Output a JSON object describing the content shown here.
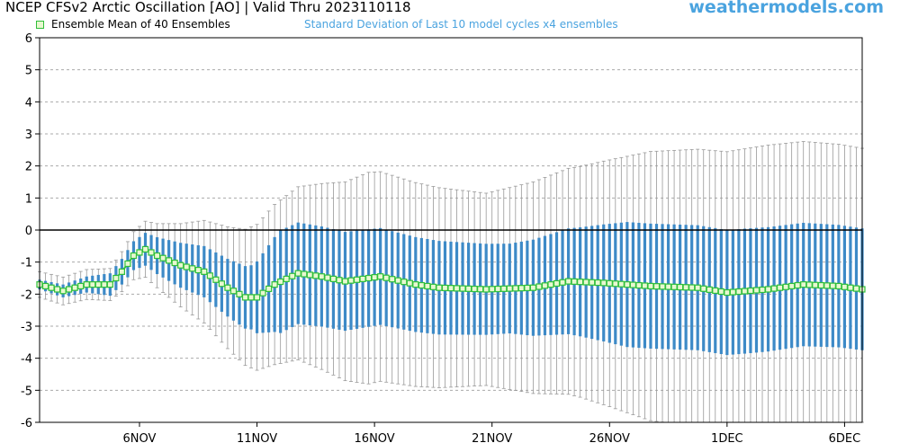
{
  "header": {
    "title": "NCEP CFSv2 Arctic Oscillation [AO] | Valid Thru 2023110118",
    "brand": "weathermodels.com"
  },
  "legend": {
    "mean_label": "Ensemble Mean of 40 Ensembles",
    "std_label": "Standard Deviation of Last 10 model cycles x4 ensembles"
  },
  "colors": {
    "mean_line": "#2fbf3a",
    "mean_marker_fill": "#e8f8d0",
    "std_bar": "#3d8ac7",
    "whisker": "#999999",
    "zero_line": "#000000",
    "grid": "#aaaaaa"
  },
  "chart_data": {
    "type": "line",
    "title": "NCEP CFSv2 Arctic Oscillation [AO] | Valid Thru 2023110118",
    "xlabel": "",
    "ylabel": "",
    "ylim": [
      -6,
      6
    ],
    "yticks": [
      6,
      5,
      4,
      3,
      2,
      1,
      0,
      -1,
      -2,
      -3,
      -4,
      -5,
      -6
    ],
    "grid": "horizontal dashed",
    "x_tick_labels": [
      "6NOV",
      "11NOV",
      "16NOV",
      "21NOV",
      "26NOV",
      "1DEC",
      "6DEC"
    ],
    "x_tick_dates": [
      "2023-11-06",
      "2023-11-11",
      "2023-11-16",
      "2023-11-21",
      "2023-11-26",
      "2023-12-01",
      "2023-12-06"
    ],
    "x_start": "2023-11-01T18:00",
    "x_end": "2023-12-06T18:00",
    "step_hours": 6,
    "mean_anchors": [
      {
        "x": "2023-11-01T18:00",
        "y": -1.7
      },
      {
        "x": "2023-11-02T18:00",
        "y": -1.9
      },
      {
        "x": "2023-11-03T18:00",
        "y": -1.7
      },
      {
        "x": "2023-11-04T18:00",
        "y": -1.7
      },
      {
        "x": "2023-11-05T06:00",
        "y": -1.3
      },
      {
        "x": "2023-11-05T18:00",
        "y": -0.8
      },
      {
        "x": "2023-11-06T06:00",
        "y": -0.6
      },
      {
        "x": "2023-11-06T18:00",
        "y": -0.8
      },
      {
        "x": "2023-11-07T18:00",
        "y": -1.1
      },
      {
        "x": "2023-11-08T18:00",
        "y": -1.3
      },
      {
        "x": "2023-11-09T18:00",
        "y": -1.8
      },
      {
        "x": "2023-11-10T12:00",
        "y": -2.1
      },
      {
        "x": "2023-11-11T00:00",
        "y": -2.1
      },
      {
        "x": "2023-11-11T18:00",
        "y": -1.7
      },
      {
        "x": "2023-11-12T18:00",
        "y": -1.35
      },
      {
        "x": "2023-11-13T18:00",
        "y": -1.45
      },
      {
        "x": "2023-11-14T18:00",
        "y": -1.6
      },
      {
        "x": "2023-11-15T18:00",
        "y": -1.5
      },
      {
        "x": "2023-11-16T06:00",
        "y": -1.45
      },
      {
        "x": "2023-11-17T18:00",
        "y": -1.7
      },
      {
        "x": "2023-11-18T18:00",
        "y": -1.8
      },
      {
        "x": "2023-11-20T18:00",
        "y": -1.85
      },
      {
        "x": "2023-11-22T18:00",
        "y": -1.8
      },
      {
        "x": "2023-11-24T06:00",
        "y": -1.6
      },
      {
        "x": "2023-11-25T18:00",
        "y": -1.65
      },
      {
        "x": "2023-11-27T18:00",
        "y": -1.75
      },
      {
        "x": "2023-11-29T18:00",
        "y": -1.8
      },
      {
        "x": "2023-12-01T00:00",
        "y": -1.95
      },
      {
        "x": "2023-12-02T18:00",
        "y": -1.85
      },
      {
        "x": "2023-12-04T06:00",
        "y": -1.7
      },
      {
        "x": "2023-12-05T18:00",
        "y": -1.75
      },
      {
        "x": "2023-12-06T18:00",
        "y": -1.85
      }
    ],
    "std_anchors": [
      {
        "x": "2023-11-01T18:00",
        "s": 0.15
      },
      {
        "x": "2023-11-03T18:00",
        "s": 0.25
      },
      {
        "x": "2023-11-05T18:00",
        "s": 0.45
      },
      {
        "x": "2023-11-07T18:00",
        "s": 0.7
      },
      {
        "x": "2023-11-10T18:00",
        "s": 1.0
      },
      {
        "x": "2023-11-12T00:00",
        "s": 1.6
      },
      {
        "x": "2023-11-16T18:00",
        "s": 1.5
      },
      {
        "x": "2023-11-21T18:00",
        "s": 1.4
      },
      {
        "x": "2023-11-24T18:00",
        "s": 1.7
      },
      {
        "x": "2023-11-26T18:00",
        "s": 1.95
      },
      {
        "x": "2023-12-01T18:00",
        "s": 1.95
      },
      {
        "x": "2023-12-06T18:00",
        "s": 1.9
      }
    ],
    "spread_anchors": [
      {
        "x": "2023-11-01T18:00",
        "s": 0.4
      },
      {
        "x": "2023-11-04T18:00",
        "s": 0.5
      },
      {
        "x": "2023-11-06T18:00",
        "s": 1.0
      },
      {
        "x": "2023-11-09T18:00",
        "s": 1.9
      },
      {
        "x": "2023-11-11T18:00",
        "s": 2.5
      },
      {
        "x": "2023-11-15T18:00",
        "s": 3.3
      },
      {
        "x": "2023-11-20T18:00",
        "s": 3.0
      },
      {
        "x": "2023-11-24T18:00",
        "s": 3.6
      },
      {
        "x": "2023-11-27T18:00",
        "s": 4.2
      },
      {
        "x": "2023-12-02T18:00",
        "s": 4.5
      },
      {
        "x": "2023-12-06T18:00",
        "s": 4.4
      }
    ]
  }
}
